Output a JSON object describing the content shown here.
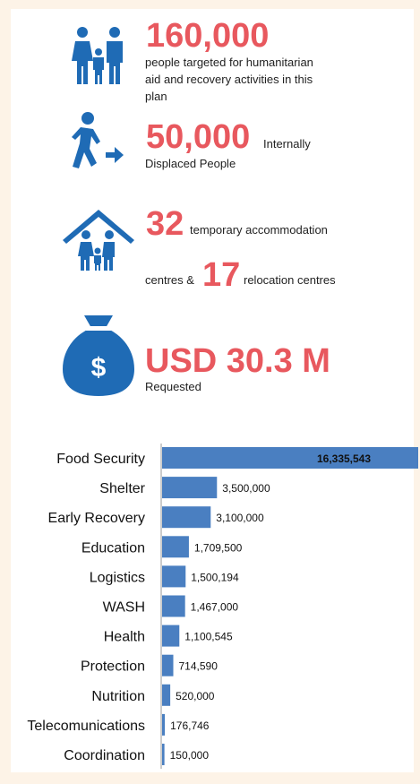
{
  "stats": [
    {
      "figure": "160,000",
      "lines": [
        "people targeted for humanitarian",
        "aid and recovery activities in this",
        "plan"
      ]
    },
    {
      "figure": "50,000",
      "after": "Internally",
      "lines": [
        "Displaced People"
      ]
    },
    {
      "figure": "32",
      "after": "temporary accommodation",
      "second_before": "centres &",
      "second_figure": "17",
      "second_after": "relocation centres"
    },
    {
      "icon": "$",
      "figure": "USD 30.3 M",
      "lines": [
        "Requested"
      ]
    }
  ],
  "chart_data": {
    "type": "bar",
    "orientation": "horizontal",
    "categories": [
      "Food Security",
      "Shelter",
      "Early Recovery",
      "Education",
      "Logistics",
      "WASH",
      "Health",
      "Protection",
      "Nutrition",
      "Telecomunications",
      "Coordination"
    ],
    "values": [
      16335543,
      3500000,
      3100000,
      1709500,
      1500194,
      1467000,
      1100545,
      714590,
      520000,
      176746,
      150000
    ],
    "value_labels": [
      "16,335,543",
      "3,500,000",
      "3,100,000",
      "1,709,500",
      "1,500,194",
      "1,467,000",
      "1,100,545",
      "714,590",
      "520,000",
      "176,746",
      "150,000"
    ],
    "color": "#4a7fc1"
  }
}
